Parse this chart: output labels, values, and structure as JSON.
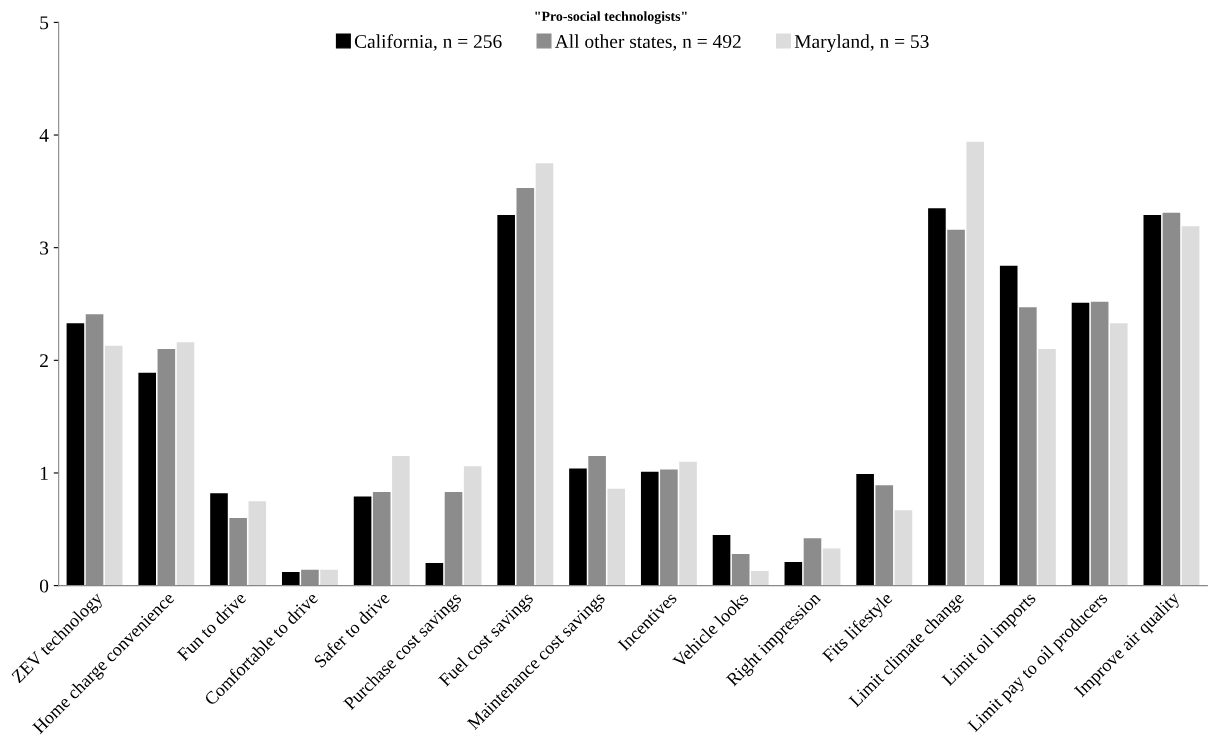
{
  "chart_data": {
    "type": "bar",
    "title": "\"Pro-social technologists\"",
    "categories": [
      "ZEV technology",
      "Home charge convenience",
      "Fun to drive",
      "Comfortable to drive",
      "Safer to drive",
      "Purchase cost savings",
      "Fuel cost savings",
      "Maintenance cost savings",
      "Incentives",
      "Vehicle looks",
      "Right impression",
      "Fits lifestyle",
      "Limit climate change",
      "Limit oil imports",
      "Limit pay to oil producers",
      "Improve air quality"
    ],
    "series": [
      {
        "name": "California, n = 256",
        "color": "#000000",
        "values": [
          2.33,
          1.89,
          0.82,
          0.12,
          0.79,
          0.2,
          3.29,
          1.04,
          1.01,
          0.45,
          0.21,
          0.99,
          3.35,
          2.84,
          2.51,
          3.29
        ]
      },
      {
        "name": "All other states, n = 492",
        "color": "#8c8c8c",
        "values": [
          2.41,
          2.1,
          0.6,
          0.14,
          0.83,
          0.83,
          3.53,
          1.15,
          1.03,
          0.28,
          0.42,
          0.89,
          3.16,
          2.47,
          2.52,
          3.31
        ]
      },
      {
        "name": "Maryland, n = 53",
        "color": "#dcdcdc",
        "values": [
          2.13,
          2.16,
          0.75,
          0.14,
          1.15,
          1.06,
          3.75,
          0.86,
          1.1,
          0.13,
          0.33,
          0.67,
          3.94,
          2.1,
          2.33,
          3.19
        ]
      }
    ],
    "ylim": [
      0,
      5
    ],
    "yticks": [
      0,
      1,
      2,
      3,
      4,
      5
    ],
    "grid": false,
    "legend": "top"
  }
}
